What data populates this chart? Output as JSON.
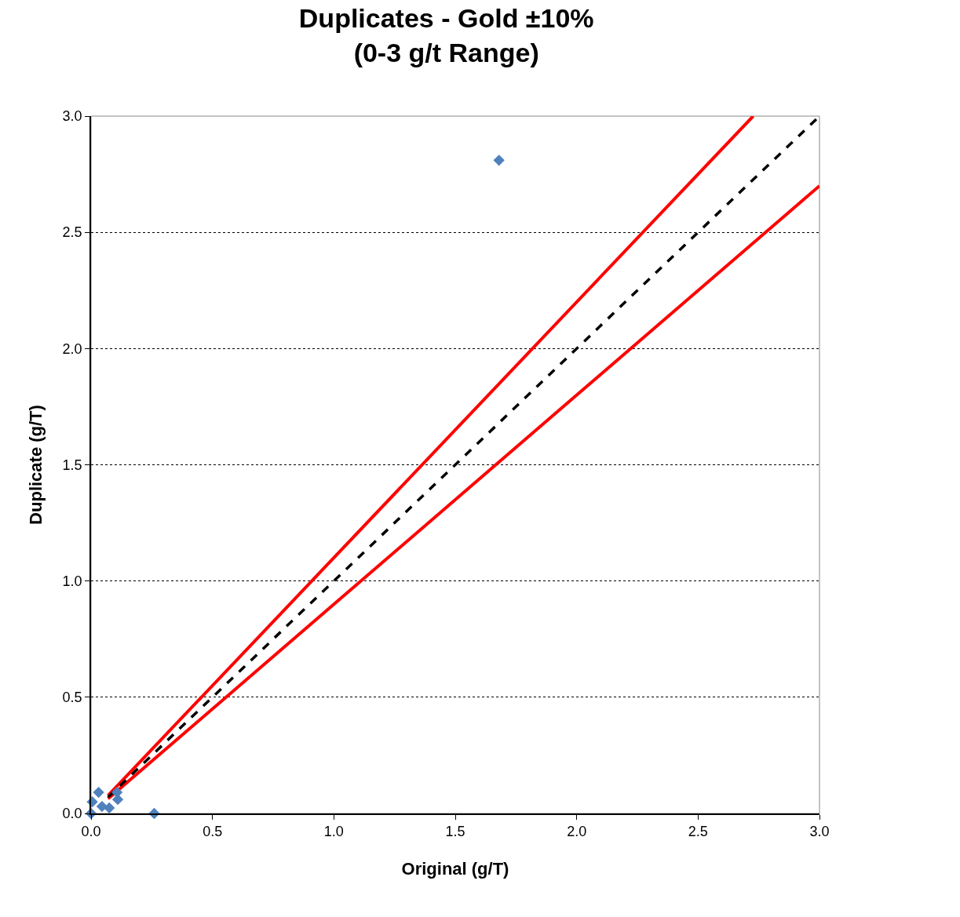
{
  "chart_data": {
    "type": "scatter",
    "title": "Duplicates - Gold ±10%\n(0-3 g/t Range)",
    "xlabel": "Original (g/T)",
    "ylabel": "Duplicate (g/T)",
    "xlim": [
      0,
      3
    ],
    "ylim": [
      0,
      3
    ],
    "xticks": [
      {
        "value": 0,
        "label": "0.0"
      },
      0.5,
      {
        "value": 1,
        "label": "1.0"
      },
      1.5,
      {
        "value": 2,
        "label": "2.0"
      },
      2.5,
      {
        "value": 3,
        "label": "3.0"
      }
    ],
    "yticks": [
      {
        "value": 0,
        "label": "0.0"
      },
      0.5,
      {
        "value": 1,
        "label": "1.0"
      },
      1.5,
      {
        "value": 2,
        "label": "2.0"
      },
      2.5,
      {
        "value": 3,
        "label": "3.0"
      }
    ],
    "grid": "y",
    "series": [
      {
        "color": "#4f81bd",
        "marker": "diamond",
        "x": [
          0.0,
          0.005,
          0.031,
          0.045,
          0.075,
          0.107,
          0.11,
          0.26,
          1.68
        ],
        "values": [
          0.0,
          0.05,
          0.091,
          0.03,
          0.024,
          0.091,
          0.06,
          0.0,
          2.81
        ]
      },
      {
        "type": "line",
        "color": "#ff0000",
        "line_style": "solid",
        "marker": "none",
        "x": [
          0.07,
          2.727
        ],
        "values": [
          0.077,
          3.0
        ]
      },
      {
        "type": "line",
        "color": "#ff0000",
        "line_style": "solid",
        "marker": "none",
        "x": [
          0.07,
          3.0
        ],
        "values": [
          0.063,
          2.7
        ]
      },
      {
        "type": "line",
        "color": "#000000",
        "line_style": "dashed",
        "marker": "none",
        "x": [
          0.07,
          3.0
        ],
        "values": [
          0.07,
          3.0
        ]
      }
    ]
  }
}
